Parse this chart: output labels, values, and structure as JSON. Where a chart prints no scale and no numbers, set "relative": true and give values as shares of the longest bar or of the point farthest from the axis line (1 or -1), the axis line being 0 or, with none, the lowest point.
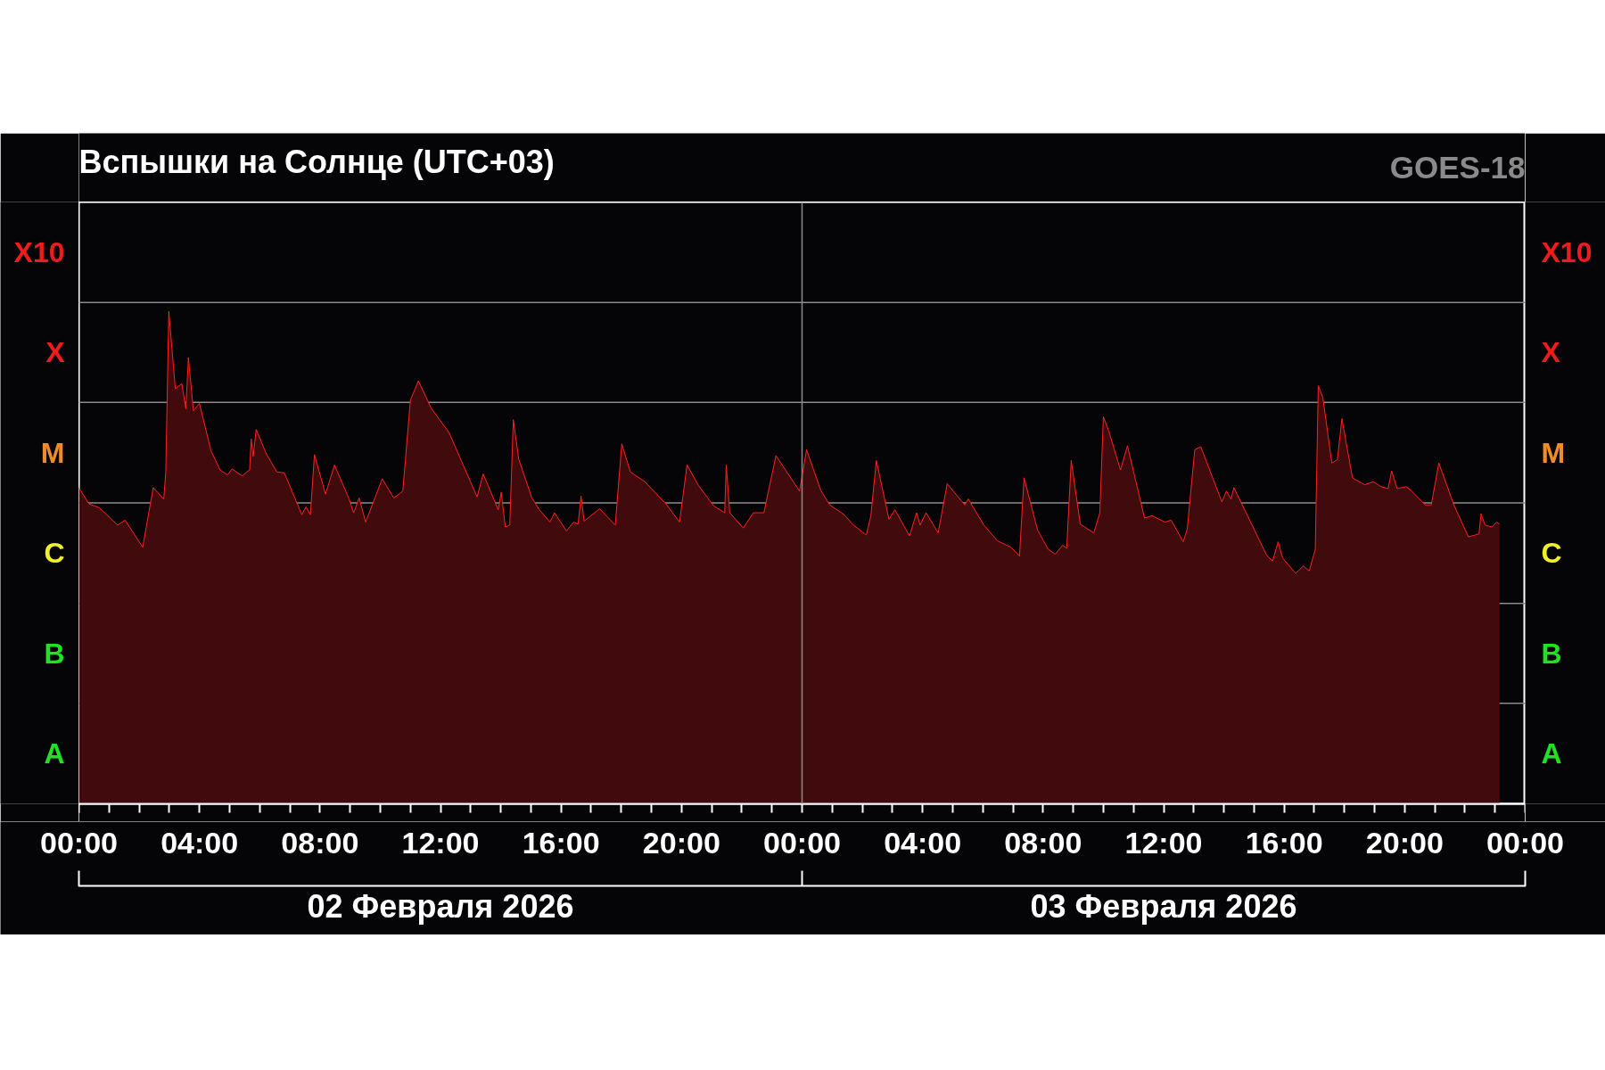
{
  "chart_data": {
    "type": "area",
    "relative": true,
    "title": "Вспышки на Солнце (UTC+03)",
    "annotations": [
      "GOES-18",
      "02 Февраля 2026",
      "03 Февраля 2026"
    ],
    "xlim": [
      "2026-02-02T00:00",
      "2026-02-04T00:00"
    ],
    "xticks": [
      {
        "value": "2026-02-02T00:00",
        "label": "00:00"
      },
      {
        "value": "2026-02-02T01:00",
        "label": null
      },
      {
        "value": "2026-02-02T02:00",
        "label": null
      },
      {
        "value": "2026-02-02T03:00",
        "label": null
      },
      {
        "value": "2026-02-02T04:00",
        "label": "04:00"
      },
      {
        "value": "2026-02-02T05:00",
        "label": null
      },
      {
        "value": "2026-02-02T06:00",
        "label": null
      },
      {
        "value": "2026-02-02T07:00",
        "label": null
      },
      {
        "value": "2026-02-02T08:00",
        "label": "08:00"
      },
      {
        "value": "2026-02-02T09:00",
        "label": null
      },
      {
        "value": "2026-02-02T10:00",
        "label": null
      },
      {
        "value": "2026-02-02T11:00",
        "label": null
      },
      {
        "value": "2026-02-02T12:00",
        "label": "12:00"
      },
      {
        "value": "2026-02-02T13:00",
        "label": null
      },
      {
        "value": "2026-02-02T14:00",
        "label": null
      },
      {
        "value": "2026-02-02T15:00",
        "label": null
      },
      {
        "value": "2026-02-02T16:00",
        "label": "16:00"
      },
      {
        "value": "2026-02-02T17:00",
        "label": null
      },
      {
        "value": "2026-02-02T18:00",
        "label": null
      },
      {
        "value": "2026-02-02T19:00",
        "label": null
      },
      {
        "value": "2026-02-02T20:00",
        "label": "20:00"
      },
      {
        "value": "2026-02-02T21:00",
        "label": null
      },
      {
        "value": "2026-02-02T22:00",
        "label": null
      },
      {
        "value": "2026-02-02T23:00",
        "label": null
      },
      {
        "value": "2026-02-03T00:00",
        "label": "00:00"
      },
      {
        "value": "2026-02-03T01:00",
        "label": null
      },
      {
        "value": "2026-02-03T02:00",
        "label": null
      },
      {
        "value": "2026-02-03T03:00",
        "label": null
      },
      {
        "value": "2026-02-03T04:00",
        "label": "04:00"
      },
      {
        "value": "2026-02-03T05:00",
        "label": null
      },
      {
        "value": "2026-02-03T06:00",
        "label": null
      },
      {
        "value": "2026-02-03T07:00",
        "label": null
      },
      {
        "value": "2026-02-03T08:00",
        "label": "08:00"
      },
      {
        "value": "2026-02-03T09:00",
        "label": null
      },
      {
        "value": "2026-02-03T10:00",
        "label": null
      },
      {
        "value": "2026-02-03T11:00",
        "label": null
      },
      {
        "value": "2026-02-03T12:00",
        "label": "12:00"
      },
      {
        "value": "2026-02-03T13:00",
        "label": null
      },
      {
        "value": "2026-02-03T14:00",
        "label": null
      },
      {
        "value": "2026-02-03T15:00",
        "label": null
      },
      {
        "value": "2026-02-03T16:00",
        "label": "16:00"
      },
      {
        "value": "2026-02-03T17:00",
        "label": null
      },
      {
        "value": "2026-02-03T18:00",
        "label": null
      },
      {
        "value": "2026-02-03T19:00",
        "label": null
      },
      {
        "value": "2026-02-03T20:00",
        "label": "20:00"
      },
      {
        "value": "2026-02-03T21:00",
        "label": null
      },
      {
        "value": "2026-02-03T22:00",
        "label": null
      },
      {
        "value": "2026-02-03T23:00",
        "label": null
      },
      {
        "value": "2026-02-04T00:00",
        "label": "00:00"
      }
    ],
    "ref_lines": [
      {
        "axis": "y",
        "value": 0,
        "label": "A",
        "color": "#ffffff"
      },
      {
        "axis": "y",
        "value": 0.204,
        "label": "B",
        "color": "#8c8c8c"
      },
      {
        "axis": "y",
        "value": 0.407,
        "label": "C",
        "color": "#8c8c8c"
      },
      {
        "axis": "y",
        "value": 0.611,
        "label": "M",
        "color": "#8c8c8c"
      },
      {
        "axis": "y",
        "value": 0.815,
        "label": "X",
        "color": "#8c8c8c"
      },
      {
        "axis": "y",
        "value": 1.018,
        "label": "X10",
        "color": "#8c8c8c"
      },
      {
        "axis": "y",
        "value": 1.222,
        "color": "#ffffff"
      },
      {
        "axis": "x",
        "value": "2026-02-03T00:00",
        "color": "#8c8c8c"
      }
    ],
    "series": [
      {
        "color": "#ff2020",
        "x": [
          "2026-02-02T00:00",
          "2026-02-02T00:20",
          "2026-02-02T00:41",
          "2026-02-02T01:17",
          "2026-02-02T01:32",
          "2026-02-02T02:07",
          "2026-02-02T02:28",
          "2026-02-02T02:49",
          "2026-02-02T02:53",
          "2026-02-02T02:59",
          "2026-02-02T03:12",
          "2026-02-02T03:25",
          "2026-02-02T03:33",
          "2026-02-02T03:38",
          "2026-02-02T03:48",
          "2026-02-02T04:00",
          "2026-02-02T04:23",
          "2026-02-02T04:41",
          "2026-02-02T04:56",
          "2026-02-02T05:05",
          "2026-02-02T05:25",
          "2026-02-02T05:40",
          "2026-02-02T05:43",
          "2026-02-02T05:47",
          "2026-02-02T05:53",
          "2026-02-02T06:13",
          "2026-02-02T06:34",
          "2026-02-02T06:49",
          "2026-02-02T07:24",
          "2026-02-02T07:32",
          "2026-02-02T07:41",
          "2026-02-02T07:49",
          "2026-02-02T08:11",
          "2026-02-02T08:29",
          "2026-02-02T08:58",
          "2026-02-02T09:07",
          "2026-02-02T09:18",
          "2026-02-02T09:31",
          "2026-02-02T10:04",
          "2026-02-02T10:27",
          "2026-02-02T10:45",
          "2026-02-02T11:00",
          "2026-02-02T11:16",
          "2026-02-02T11:41",
          "2026-02-02T12:17",
          "2026-02-02T13:13",
          "2026-02-02T13:25",
          "2026-02-02T13:55",
          "2026-02-02T14:01",
          "2026-02-02T14:09",
          "2026-02-02T14:18",
          "2026-02-02T14:25",
          "2026-02-02T14:36",
          "2026-02-02T15:02",
          "2026-02-02T15:17",
          "2026-02-02T15:38",
          "2026-02-02T15:47",
          "2026-02-02T16:11",
          "2026-02-02T16:25",
          "2026-02-02T16:34",
          "2026-02-02T16:40",
          "2026-02-02T16:46",
          "2026-02-02T17:17",
          "2026-02-02T17:48",
          "2026-02-02T18:01",
          "2026-02-02T18:18",
          "2026-02-02T18:47",
          "2026-02-02T19:29",
          "2026-02-02T19:56",
          "2026-02-02T20:11",
          "2026-02-02T20:34",
          "2026-02-02T21:04",
          "2026-02-02T21:26",
          "2026-02-02T21:29",
          "2026-02-02T21:36",
          "2026-02-02T22:03",
          "2026-02-02T22:23",
          "2026-02-02T22:44",
          "2026-02-02T23:08",
          "2026-02-02T23:55",
          "2026-02-03T00:09",
          "2026-02-03T00:37",
          "2026-02-03T00:55",
          "2026-02-03T01:24",
          "2026-02-03T01:42",
          "2026-02-03T02:08",
          "2026-02-03T02:17",
          "2026-02-03T02:28",
          "2026-02-03T02:53",
          "2026-02-03T03:05",
          "2026-02-03T03:34",
          "2026-02-03T03:48",
          "2026-02-03T03:55",
          "2026-02-03T04:07",
          "2026-02-03T04:31",
          "2026-02-03T04:49",
          "2026-02-03T05:24",
          "2026-02-03T05:31",
          "2026-02-03T06:02",
          "2026-02-03T06:29",
          "2026-02-03T06:56",
          "2026-02-03T07:13",
          "2026-02-03T07:22",
          "2026-02-03T07:49",
          "2026-02-03T08:10",
          "2026-02-03T08:24",
          "2026-02-03T08:39",
          "2026-02-03T08:47",
          "2026-02-03T08:56",
          "2026-02-03T09:14",
          "2026-02-03T09:41",
          "2026-02-03T09:53",
          "2026-02-03T10:00",
          "2026-02-03T10:11",
          "2026-02-03T10:34",
          "2026-02-03T10:48",
          "2026-02-03T11:22",
          "2026-02-03T11:37",
          "2026-02-03T12:03",
          "2026-02-03T12:15",
          "2026-02-03T12:39",
          "2026-02-03T12:47",
          "2026-02-03T13:02",
          "2026-02-03T13:14",
          "2026-02-03T13:56",
          "2026-02-03T14:05",
          "2026-02-03T14:14",
          "2026-02-03T14:20",
          "2026-02-03T15:25",
          "2026-02-03T15:37",
          "2026-02-03T15:48",
          "2026-02-03T15:57",
          "2026-02-03T16:23",
          "2026-02-03T16:38",
          "2026-02-03T16:50",
          "2026-02-03T17:02",
          "2026-02-03T17:08",
          "2026-02-03T17:17",
          "2026-02-03T17:35",
          "2026-02-03T17:46",
          "2026-02-03T17:55",
          "2026-02-03T18:16",
          "2026-02-03T18:40",
          "2026-02-03T18:58",
          "2026-02-03T19:13",
          "2026-02-03T19:27",
          "2026-02-03T19:34",
          "2026-02-03T19:45",
          "2026-02-03T20:03",
          "2026-02-03T20:14",
          "2026-02-03T20:41",
          "2026-02-03T20:53",
          "2026-02-03T21:08",
          "2026-02-03T21:38",
          "2026-02-03T22:07",
          "2026-02-03T22:28",
          "2026-02-03T22:32",
          "2026-02-03T22:40",
          "2026-02-03T22:54",
          "2026-02-03T23:03",
          "2026-02-03T23:09"
        ],
        "values": [
          0.642,
          0.609,
          0.601,
          0.566,
          0.576,
          0.521,
          0.642,
          0.619,
          0.674,
          1,
          0.843,
          0.853,
          0.802,
          0.906,
          0.798,
          0.813,
          0.717,
          0.678,
          0.668,
          0.68,
          0.666,
          0.678,
          0.741,
          0.705,
          0.76,
          0.711,
          0.674,
          0.672,
          0.587,
          0.603,
          0.587,
          0.709,
          0.629,
          0.688,
          0.619,
          0.591,
          0.621,
          0.572,
          0.66,
          0.621,
          0.635,
          0.819,
          0.859,
          0.804,
          0.754,
          0.623,
          0.67,
          0.597,
          0.633,
          0.562,
          0.566,
          0.78,
          0.699,
          0.621,
          0.597,
          0.572,
          0.591,
          0.554,
          0.572,
          0.568,
          0.625,
          0.574,
          0.599,
          0.566,
          0.731,
          0.674,
          0.654,
          0.609,
          0.572,
          0.688,
          0.646,
          0.605,
          0.591,
          0.688,
          0.591,
          0.56,
          0.591,
          0.591,
          0.707,
          0.635,
          0.719,
          0.637,
          0.607,
          0.587,
          0.566,
          0.546,
          0.585,
          0.697,
          0.578,
          0.597,
          0.544,
          0.591,
          0.566,
          0.591,
          0.55,
          0.65,
          0.607,
          0.619,
          0.566,
          0.534,
          0.521,
          0.503,
          0.662,
          0.556,
          0.517,
          0.507,
          0.525,
          0.519,
          0.697,
          0.568,
          0.55,
          0.591,
          0.786,
          0.756,
          0.678,
          0.727,
          0.58,
          0.585,
          0.572,
          0.576,
          0.532,
          0.558,
          0.719,
          0.725,
          0.613,
          0.635,
          0.619,
          0.642,
          0.505,
          0.493,
          0.532,
          0.499,
          0.468,
          0.483,
          0.473,
          0.517,
          0.849,
          0.825,
          0.692,
          0.699,
          0.782,
          0.662,
          0.648,
          0.654,
          0.644,
          0.64,
          0.676,
          0.64,
          0.644,
          0.635,
          0.607,
          0.607,
          0.692,
          0.607,
          0.542,
          0.548,
          0.589,
          0.566,
          0.562,
          0.572,
          0.568
        ]
      }
    ]
  }
}
